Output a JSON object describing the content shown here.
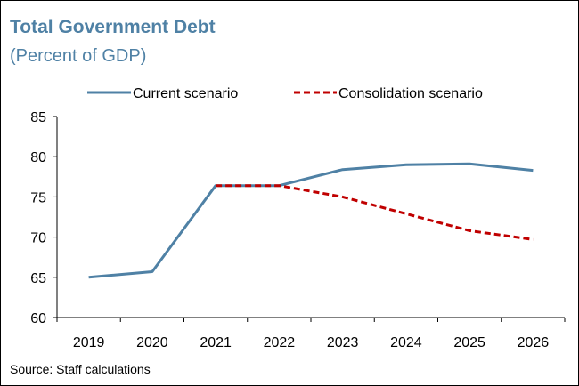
{
  "title": "Total Government Debt",
  "subtitle": "(Percent of GDP)",
  "source": "Source: Staff calculations",
  "colors": {
    "current": "#4f81a5",
    "consolidation": "#c00000",
    "title": "#4f81a5"
  },
  "chart_data": {
    "type": "line",
    "title": "Total Government Debt",
    "subtitle": "(Percent of GDP)",
    "xlabel": "",
    "ylabel": "",
    "categories": [
      "2019",
      "2020",
      "2021",
      "2022",
      "2023",
      "2024",
      "2025",
      "2026"
    ],
    "ylim": [
      60,
      85
    ],
    "yticks": [
      60,
      65,
      70,
      75,
      80,
      85
    ],
    "grid": false,
    "legend_position": "top",
    "series": [
      {
        "name": "Current scenario",
        "style": "solid",
        "values": [
          65.0,
          65.7,
          76.4,
          76.4,
          78.4,
          79.0,
          79.1,
          78.3
        ]
      },
      {
        "name": "Consolidation scenario",
        "style": "dashed",
        "values": [
          null,
          null,
          76.4,
          76.4,
          75.0,
          72.9,
          70.8,
          69.7
        ]
      }
    ]
  }
}
